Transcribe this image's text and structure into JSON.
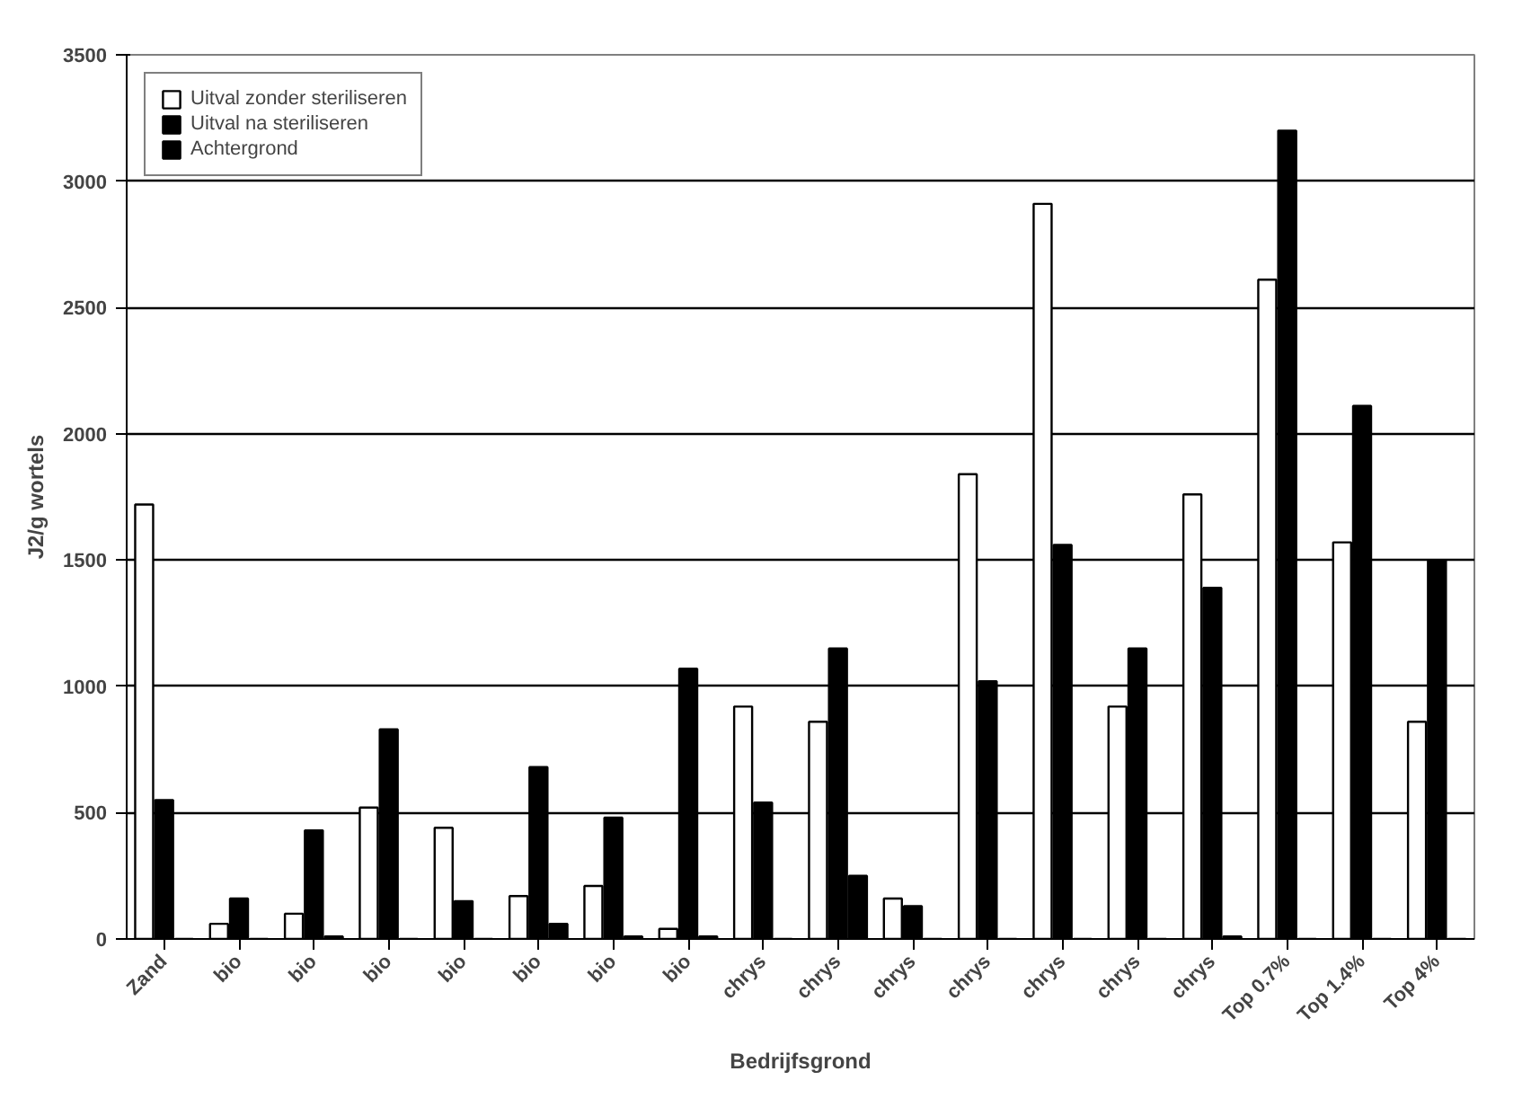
{
  "chart_data": {
    "type": "bar",
    "xlabel": "Bedrijfsgrond",
    "ylabel": "J2/g wortels",
    "categories": [
      "Zand",
      "bio",
      "bio",
      "bio",
      "bio",
      "bio",
      "bio",
      "bio",
      "chrys",
      "chrys",
      "chrys",
      "chrys",
      "chrys",
      "chrys",
      "chrys",
      "Top 0.7%",
      "Top 1.4%",
      "Top 4%"
    ],
    "series": [
      {
        "name": "Uitval zonder steriliseren",
        "color": "#ffffff",
        "values": [
          1720,
          60,
          100,
          520,
          440,
          170,
          210,
          40,
          920,
          860,
          160,
          1840,
          2910,
          920,
          1760,
          2610,
          1570,
          860
        ]
      },
      {
        "name": "Uitval na steriliseren",
        "color": "#000000",
        "values": [
          550,
          160,
          430,
          830,
          150,
          680,
          480,
          1070,
          540,
          1150,
          130,
          1020,
          1560,
          1150,
          1390,
          3200,
          2110,
          1500
        ]
      },
      {
        "name": "Achtergrond",
        "color": "#000000",
        "values": [
          0,
          0,
          10,
          0,
          0,
          60,
          10,
          10,
          0,
          250,
          0,
          0,
          0,
          0,
          10,
          0,
          0,
          0
        ]
      }
    ],
    "ylim": [
      0,
      3500
    ],
    "yticks": [
      0,
      500,
      1000,
      1500,
      2000,
      2500,
      3000,
      3500
    ],
    "grid": "y",
    "legend": "top left"
  }
}
